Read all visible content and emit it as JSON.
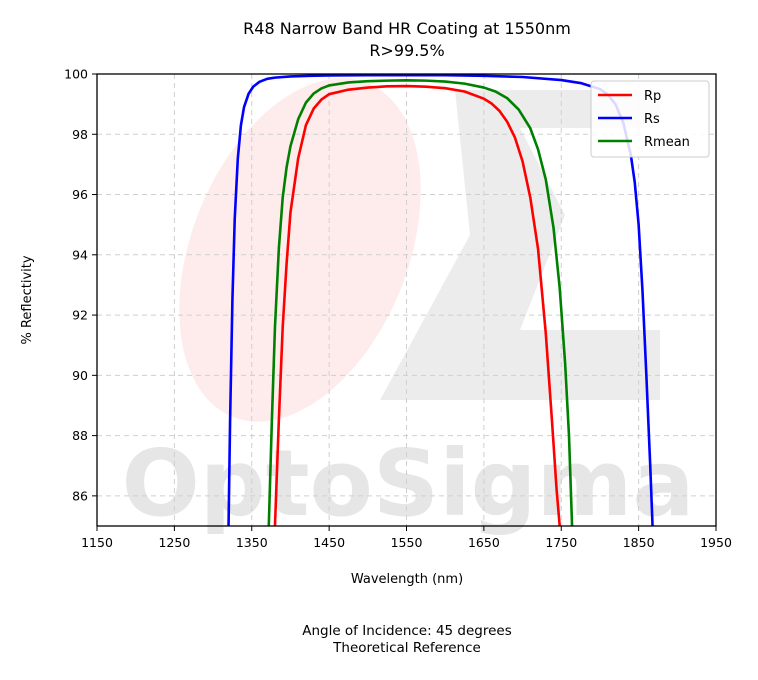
{
  "title_line1": "R48 Narrow Band HR Coating at 1550nm",
  "title_line2": "R>99.5%",
  "footer_line1": "Angle of Incidence: 45 degrees",
  "footer_line2": "Theoretical Reference",
  "watermark_text": "OptoSigma",
  "chart_data": {
    "type": "line",
    "xlabel": "Wavelength (nm)",
    "ylabel": "% Reflectivity",
    "xlim": [
      1150,
      1950
    ],
    "ylim": [
      85,
      100
    ],
    "xticks": [
      1150,
      1250,
      1350,
      1450,
      1550,
      1650,
      1750,
      1850,
      1950
    ],
    "yticks": [
      86,
      88,
      90,
      92,
      94,
      96,
      98,
      100
    ],
    "grid": true,
    "legend_position": "top-right",
    "series": [
      {
        "name": "Rp",
        "color": "#ff0000",
        "x": [
          1380,
          1385,
          1390,
          1395,
          1400,
          1410,
          1420,
          1430,
          1440,
          1450,
          1475,
          1500,
          1525,
          1550,
          1575,
          1600,
          1625,
          1650,
          1660,
          1670,
          1680,
          1690,
          1700,
          1710,
          1720,
          1730,
          1738,
          1744,
          1748
        ],
        "y": [
          85,
          88.5,
          91.6,
          93.7,
          95.4,
          97.2,
          98.3,
          98.85,
          99.15,
          99.33,
          99.48,
          99.55,
          99.59,
          99.6,
          99.58,
          99.53,
          99.42,
          99.18,
          99.02,
          98.78,
          98.42,
          97.9,
          97.1,
          95.9,
          94.2,
          91.4,
          88.5,
          86.2,
          85
        ]
      },
      {
        "name": "Rs",
        "color": "#0000ff",
        "x": [
          1320,
          1322,
          1325,
          1328,
          1332,
          1336,
          1340,
          1346,
          1352,
          1360,
          1370,
          1380,
          1400,
          1425,
          1450,
          1500,
          1550,
          1600,
          1650,
          1700,
          1750,
          1775,
          1800,
          1810,
          1820,
          1830,
          1840,
          1845,
          1850,
          1855,
          1860,
          1865,
          1868
        ],
        "y": [
          85,
          88.5,
          92.5,
          95.2,
          97.2,
          98.3,
          98.9,
          99.35,
          99.58,
          99.74,
          99.84,
          99.88,
          99.92,
          99.94,
          99.95,
          99.96,
          99.96,
          99.96,
          99.94,
          99.9,
          99.8,
          99.7,
          99.5,
          99.32,
          99.0,
          98.4,
          97.3,
          96.4,
          95.0,
          92.8,
          90.0,
          87.0,
          85
        ]
      },
      {
        "name": "Rmean",
        "color": "#008000",
        "x": [
          1372,
          1376,
          1380,
          1385,
          1390,
          1395,
          1400,
          1410,
          1420,
          1430,
          1440,
          1450,
          1475,
          1500,
          1525,
          1550,
          1575,
          1600,
          1625,
          1650,
          1665,
          1680,
          1695,
          1710,
          1720,
          1730,
          1740,
          1748,
          1755,
          1760,
          1764
        ],
        "y": [
          85,
          88.5,
          91.6,
          94.2,
          95.9,
          96.9,
          97.6,
          98.5,
          99.05,
          99.35,
          99.52,
          99.62,
          99.72,
          99.76,
          99.78,
          99.79,
          99.78,
          99.75,
          99.68,
          99.55,
          99.42,
          99.2,
          98.82,
          98.2,
          97.5,
          96.5,
          94.9,
          92.9,
          90.4,
          88.0,
          85
        ]
      }
    ]
  }
}
